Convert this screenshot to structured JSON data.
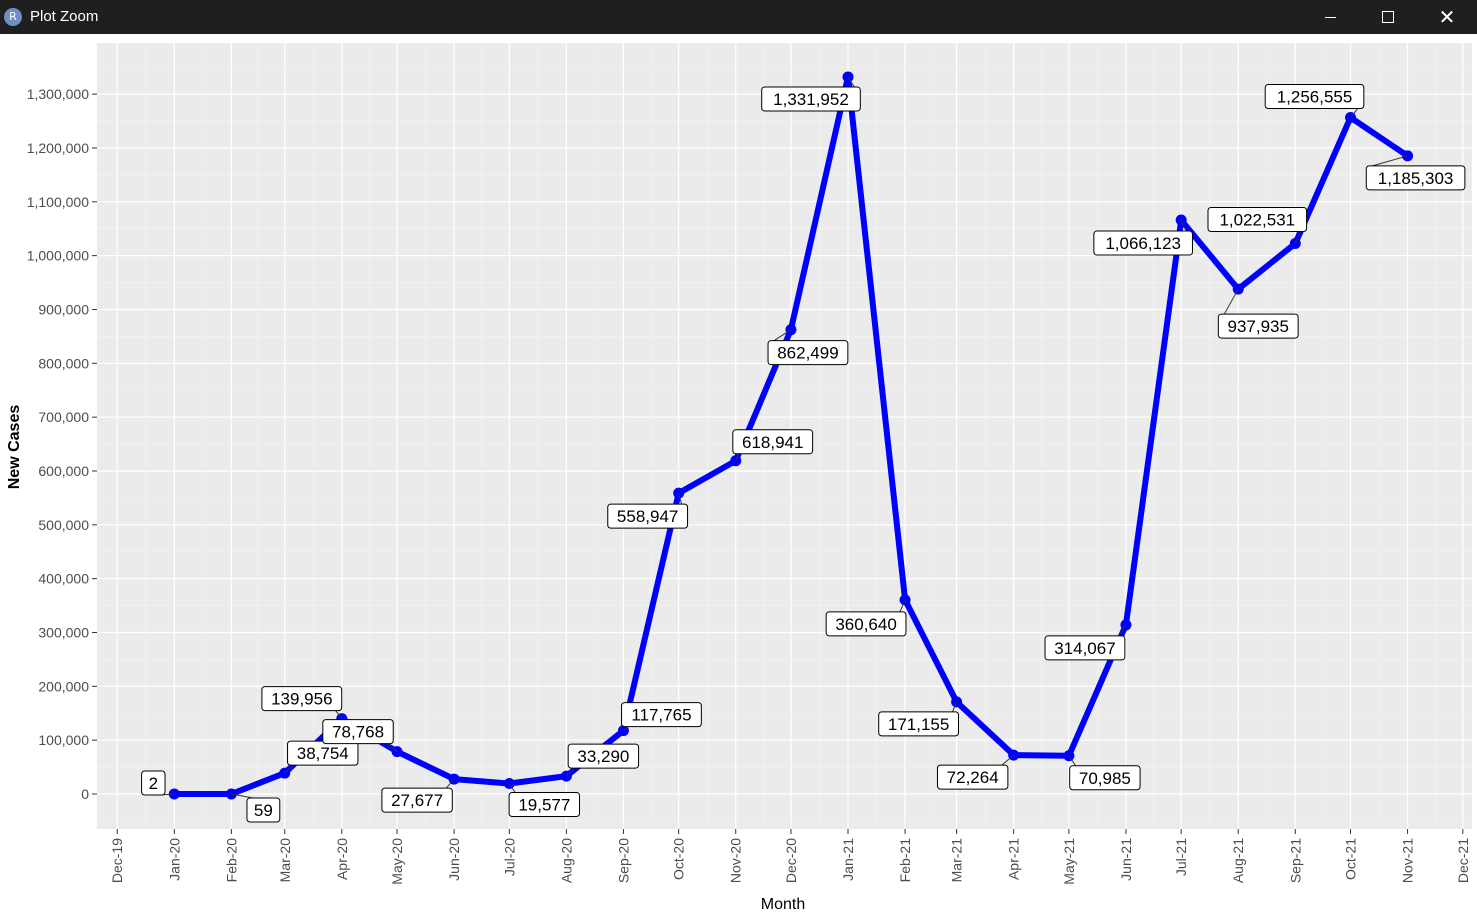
{
  "window": {
    "title": "Plot Zoom",
    "icon_letter": "R",
    "icon": "r-app-icon",
    "buttons": [
      "minimize-icon",
      "maximize-icon",
      "close-icon"
    ]
  },
  "colors": {
    "line": "#0000ff",
    "panel": "#ebebeb",
    "grid_major": "#ffffff",
    "titlebar": "#1f1f1f"
  },
  "chart_data": {
    "type": "line",
    "title": "",
    "xlabel": "Month",
    "ylabel": "New Cases",
    "x_ticks": [
      "Dec-19",
      "Jan-20",
      "Feb-20",
      "Mar-20",
      "Apr-20",
      "May-20",
      "Jun-20",
      "Jul-20",
      "Aug-20",
      "Sep-20",
      "Oct-20",
      "Nov-20",
      "Dec-20",
      "Jan-21",
      "Feb-21",
      "Mar-21",
      "Apr-21",
      "May-21",
      "Jun-21",
      "Jul-21",
      "Aug-21",
      "Sep-21",
      "Oct-21",
      "Nov-21",
      "Dec-21"
    ],
    "y_ticks": [
      "0",
      "100,000",
      "200,000",
      "300,000",
      "400,000",
      "500,000",
      "600,000",
      "700,000",
      "800,000",
      "900,000",
      "1,000,000",
      "1,100,000",
      "1,200,000",
      "1,300,000"
    ],
    "ylim": [
      -65000,
      1395000
    ],
    "xlim": [
      "2019-11-20",
      "2021-12-06"
    ],
    "grid": true,
    "series": [
      {
        "points": [
          {
            "x": "2020-01-01",
            "y": 2,
            "label": "2"
          },
          {
            "x": "2020-02-01",
            "y": 59,
            "label": "59"
          },
          {
            "x": "2020-03-01",
            "y": 38754,
            "label": "38,754"
          },
          {
            "x": "2020-04-01",
            "y": 139956,
            "label": "139,956"
          },
          {
            "x": "2020-05-01",
            "y": 78768,
            "label": "78,768"
          },
          {
            "x": "2020-06-01",
            "y": 27677,
            "label": "27,677"
          },
          {
            "x": "2020-07-01",
            "y": 19577,
            "label": "19,577"
          },
          {
            "x": "2020-08-01",
            "y": 33290,
            "label": "33,290"
          },
          {
            "x": "2020-09-01",
            "y": 117765,
            "label": "117,765"
          },
          {
            "x": "2020-10-01",
            "y": 558947,
            "label": "558,947"
          },
          {
            "x": "2020-11-01",
            "y": 618941,
            "label": "618,941"
          },
          {
            "x": "2020-12-01",
            "y": 862499,
            "label": "862,499"
          },
          {
            "x": "2021-01-01",
            "y": 1331952,
            "label": "1,331,952"
          },
          {
            "x": "2021-02-01",
            "y": 360640,
            "label": "360,640"
          },
          {
            "x": "2021-03-01",
            "y": 171155,
            "label": "171,155"
          },
          {
            "x": "2021-04-01",
            "y": 72264,
            "label": "72,264"
          },
          {
            "x": "2021-05-01",
            "y": 70985,
            "label": "70,985"
          },
          {
            "x": "2021-06-01",
            "y": 314067,
            "label": "314,067"
          },
          {
            "x": "2021-07-01",
            "y": 1066123,
            "label": "1,066,123"
          },
          {
            "x": "2021-08-01",
            "y": 937935,
            "label": "937,935"
          },
          {
            "x": "2021-09-01",
            "y": 1022531,
            "label": "1,022,531"
          },
          {
            "x": "2021-10-01",
            "y": 1256555,
            "label": "1,256,555"
          },
          {
            "x": "2021-11-01",
            "y": 1185303,
            "label": "1,185,303"
          }
        ]
      }
    ]
  }
}
